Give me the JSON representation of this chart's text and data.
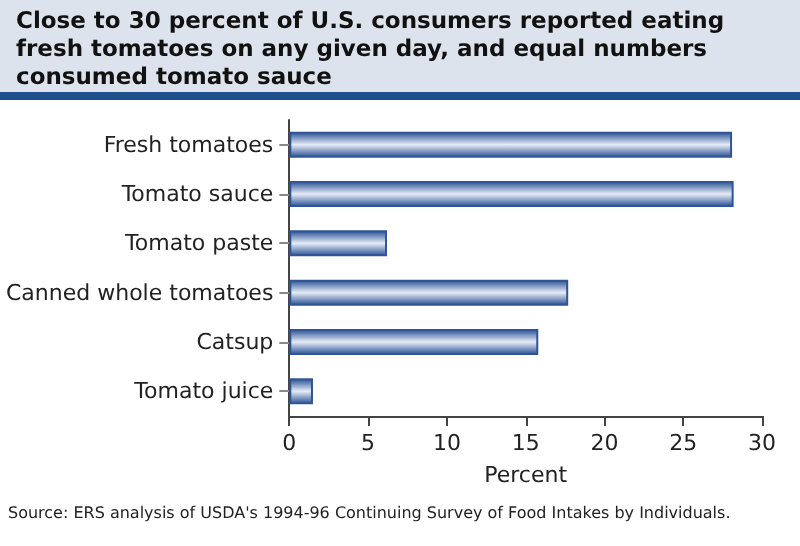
{
  "chart_data": {
    "type": "bar",
    "orientation": "horizontal",
    "title": "Close to 30 percent of U.S. consumers reported eating fresh tomatoes on any given day, and equal numbers consumed tomato sauce",
    "categories": [
      "Fresh tomatoes",
      "Tomato sauce",
      "Tomato paste",
      "Canned whole tomatoes",
      "Catsup",
      "Tomato juice"
    ],
    "values": [
      28.1,
      28.2,
      6.2,
      17.7,
      15.8,
      1.5
    ],
    "color": "#2f5597",
    "xlabel": "Percent",
    "xlim": [
      0,
      30
    ],
    "xticks": [
      0,
      5,
      10,
      15,
      20,
      25,
      30
    ],
    "grid": false,
    "annotations": [
      "Source: ERS analysis of USDA's 1994-96 Continuing Survey of Food Intakes by Individuals."
    ]
  }
}
